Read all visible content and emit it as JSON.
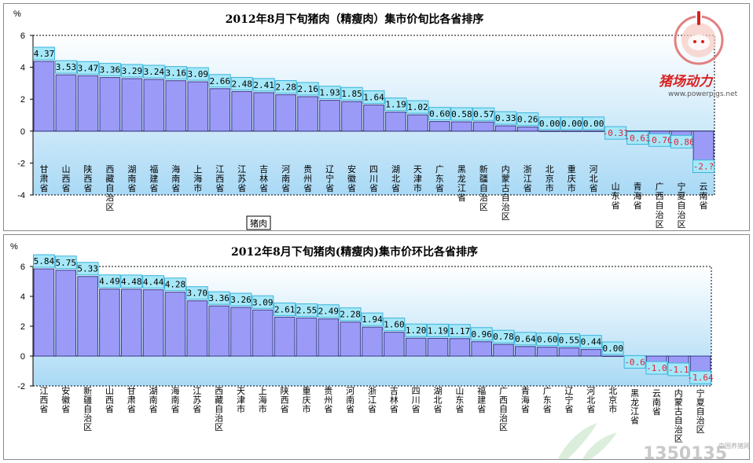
{
  "colors": {
    "bar_fill": "#9b9bf7",
    "bar_stroke": "#3a3a8a",
    "label_box_fill": "#a6e8f8",
    "label_box_stroke": "#3cb4dc",
    "negative_label": "#e0203c",
    "positive_label": "#000000",
    "plot_gradient_top": "#ffffff",
    "plot_gradient_bottom": "#a9d9f5",
    "logo_red": "#d92020"
  },
  "logo": {
    "name": "猪场动力",
    "url": "www.powerpigs.net",
    "icon": "pig-emblem-icon"
  },
  "watermark": {
    "number": "1350135",
    "small": "中国养猪网"
  },
  "chart_data": [
    {
      "type": "bar",
      "title": "2012年8月下旬猪肉（精瘦肉）集市价旬比各省排序",
      "unit": "%",
      "ylim": [
        -4,
        6
      ],
      "yticks": [
        -4,
        -2,
        0,
        2,
        4,
        6
      ],
      "grid": false,
      "legend": {
        "placement": "bottom-left",
        "label": "猪肉"
      },
      "categories": [
        "甘肃省",
        "山西省",
        "陕西省",
        "西藏自治区",
        "湖南省",
        "福建省",
        "海南省",
        "上海市",
        "江西省",
        "江苏省",
        "吉林省",
        "河南省",
        "贵州省",
        "辽宁省",
        "安徽省",
        "四川省",
        "湖北省",
        "天津市",
        "广东省",
        "黑龙江省",
        "新疆自治区",
        "内蒙古自治区",
        "浙江省",
        "北京市",
        "重庆市",
        "河北省",
        "山东省",
        "青海省",
        "广西自治区",
        "宁夏自治区",
        "云南省"
      ],
      "value_labels": [
        "4.37",
        "3.53",
        "3.47",
        "3.36",
        "3.29",
        "3.24",
        "3.16",
        "3.09",
        "2.66",
        "2.48",
        "2.41",
        "2.28",
        "2.16",
        "1.93",
        "1.85",
        "1.64",
        "1.19",
        "1.02",
        "0.60",
        "0.58",
        "0.57",
        "0.33",
        "0.26",
        "0.00",
        "0.00",
        "0.00",
        "-0.31",
        "-0.63",
        "-0.76",
        "-0.86",
        "-2.?"
      ],
      "series": [
        {
          "name": "猪肉",
          "values": [
            4.37,
            3.53,
            3.47,
            3.36,
            3.29,
            3.24,
            3.16,
            3.09,
            2.66,
            2.48,
            2.41,
            2.28,
            2.16,
            1.93,
            1.85,
            1.64,
            1.19,
            1.02,
            0.6,
            0.58,
            0.57,
            0.33,
            0.26,
            0.0,
            0.0,
            0.0,
            -0.31,
            -0.63,
            -0.76,
            -0.86,
            -2.4
          ]
        }
      ]
    },
    {
      "type": "bar",
      "title": "2012年8月下旬猪肉(精瘦肉)集市价环比各省排序",
      "unit": "%",
      "ylim": [
        -2,
        6
      ],
      "yticks": [
        -2,
        0,
        2,
        4,
        6
      ],
      "grid": false,
      "categories": [
        "江西省",
        "安徽省",
        "新疆自治区",
        "山西省",
        "甘肃省",
        "湖南省",
        "海南省",
        "江苏省",
        "西藏自治区",
        "天津市",
        "上海市",
        "陕西省",
        "重庆市",
        "贵州省",
        "河南省",
        "浙江省",
        "吉林省",
        "四川省",
        "湖北省",
        "山东省",
        "福建省",
        "广西自治区",
        "青海省",
        "广东省",
        "辽宁省",
        "河北省",
        "北京市",
        "黑龙江省",
        "云南省",
        "内蒙古自治区",
        "宁夏自治区"
      ],
      "value_labels": [
        "5.84",
        "5.75",
        "5.33",
        "4.49",
        "4.48",
        "4.44",
        "4.28",
        "3.70",
        "3.36",
        "3.26",
        "3.09",
        "2.61",
        "2.55",
        "2.49",
        "2.28",
        "1.94",
        "1.60",
        "1.20",
        "1.19",
        "1.17",
        "0.96",
        "0.78",
        "0.64",
        "0.60",
        "0.55",
        "0.44",
        "0.00",
        "-0.6",
        "-1.0",
        "-1.1",
        "-1.64"
      ],
      "series": [
        {
          "name": "",
          "values": [
            5.84,
            5.75,
            5.33,
            4.49,
            4.48,
            4.44,
            4.28,
            3.7,
            3.36,
            3.26,
            3.09,
            2.61,
            2.55,
            2.49,
            2.28,
            1.94,
            1.6,
            1.2,
            1.19,
            1.17,
            0.96,
            0.78,
            0.64,
            0.6,
            0.55,
            0.44,
            0.0,
            -0.6,
            -1.0,
            -1.1,
            -1.64
          ]
        }
      ]
    }
  ]
}
